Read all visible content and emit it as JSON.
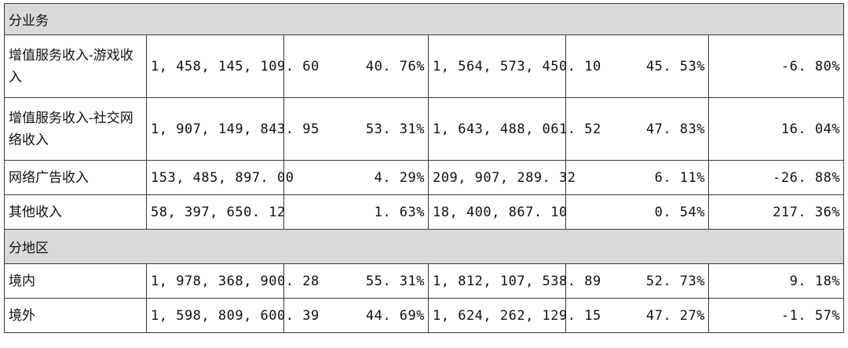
{
  "sections": [
    {
      "title": "分业务",
      "rows": [
        {
          "name": "增值服务收入-游戏收入",
          "amount_current": "1, 458, 145, 109. 60",
          "share_current": "40. 76%",
          "amount_prior": "1, 564, 573, 450. 10",
          "share_prior": "45. 53%",
          "change": "-6. 80%"
        },
        {
          "name": "增值服务收入-社交网络收入",
          "amount_current": "1, 907, 149, 843. 95",
          "share_current": "53. 31%",
          "amount_prior": "1, 643, 488, 061. 52",
          "share_prior": "47. 83%",
          "change": "16. 04%"
        },
        {
          "name": "网络广告收入",
          "amount_current": "153, 485, 897. 00",
          "share_current": "4. 29%",
          "amount_prior": "209, 907, 289. 32",
          "share_prior": "6. 11%",
          "change": "-26. 88%"
        },
        {
          "name": "其他收入",
          "amount_current": "58, 397, 650. 12",
          "share_current": "1. 63%",
          "amount_prior": "18, 400, 867. 10",
          "share_prior": "0. 54%",
          "change": "217. 36%"
        }
      ]
    },
    {
      "title": "分地区",
      "rows": [
        {
          "name": "境内",
          "amount_current": "1, 978, 368, 900. 28",
          "share_current": "55. 31%",
          "amount_prior": "1, 812, 107, 538. 89",
          "share_prior": "52. 73%",
          "change": "9. 18%"
        },
        {
          "name": "境外",
          "amount_current": "1, 598, 809, 600. 39",
          "share_current": "44. 69%",
          "amount_prior": "1, 624, 262, 129. 15",
          "share_prior": "47. 27%",
          "change": "-1. 57%"
        }
      ]
    }
  ]
}
